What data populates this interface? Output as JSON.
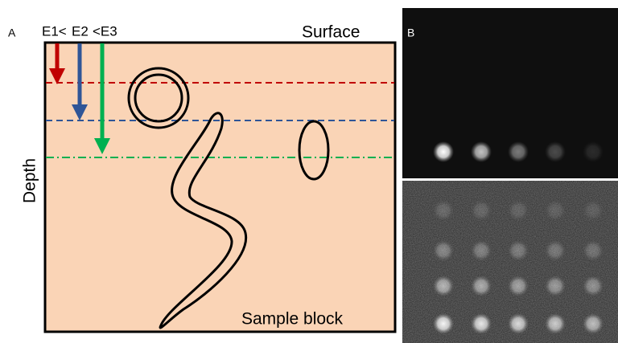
{
  "panel_a": {
    "label": "A",
    "energy_labels": [
      "E1<",
      "E2",
      "<E3"
    ],
    "surface_label": "Surface",
    "depth_label": "Depth",
    "sample_label": "Sample block"
  },
  "panel_b": {
    "label": "B"
  }
}
